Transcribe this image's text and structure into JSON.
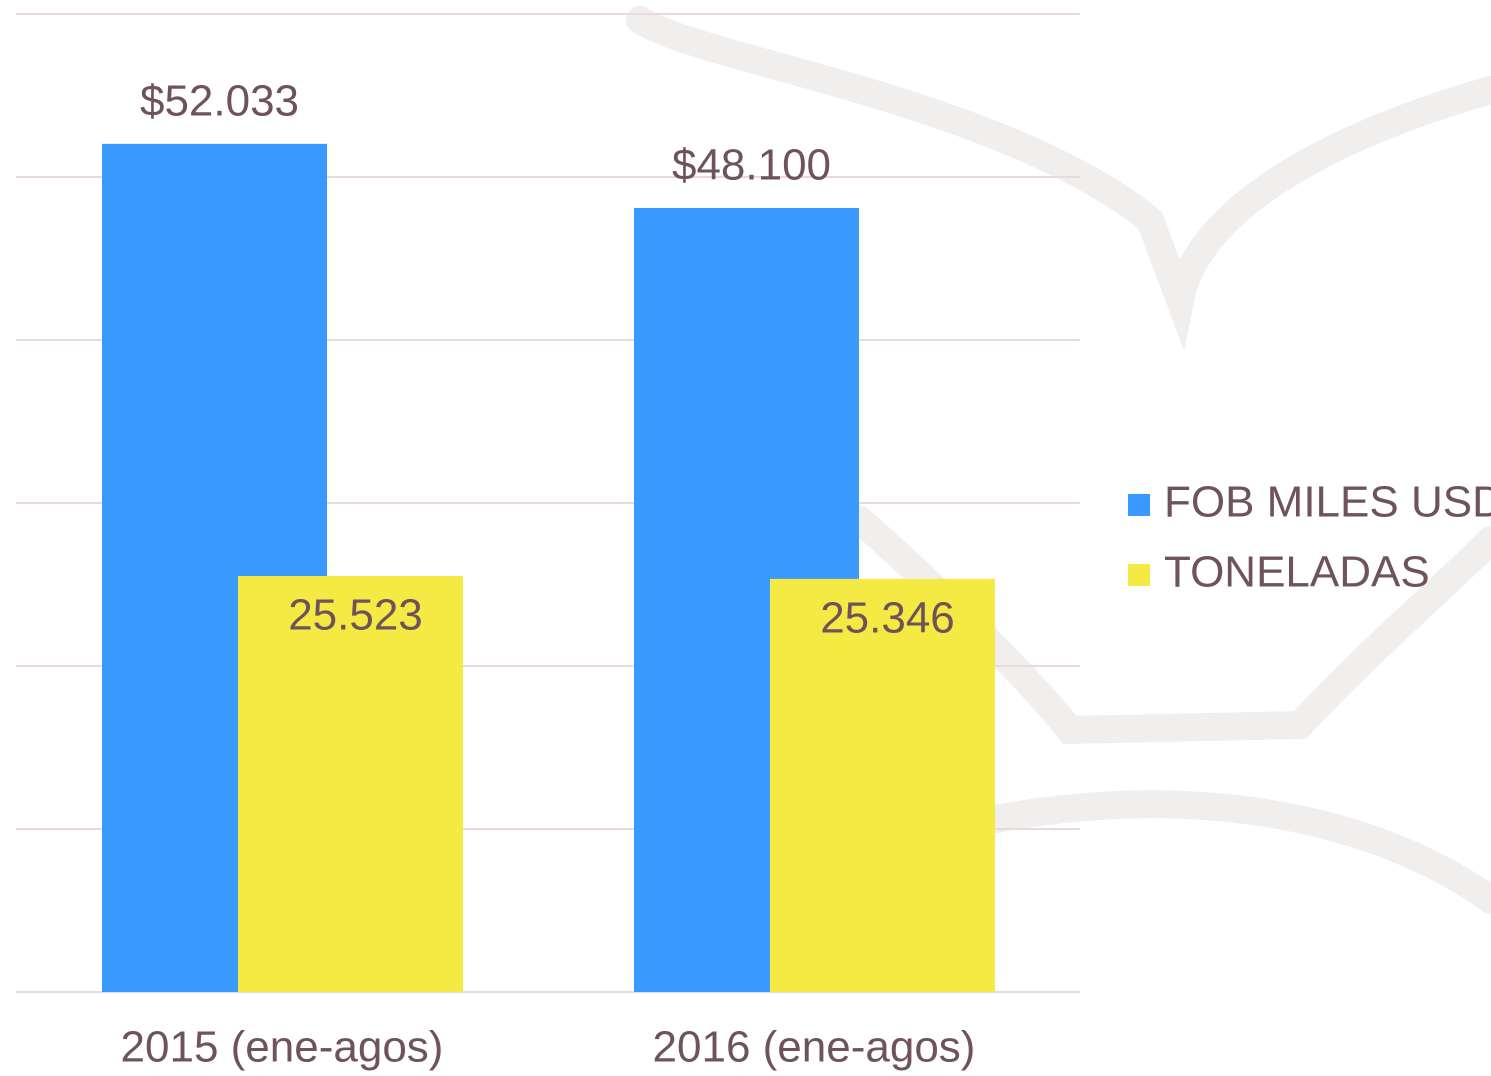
{
  "chart_data": {
    "type": "bar",
    "categories": [
      "2015 (ene-agos)",
      "2016 (ene-agos)"
    ],
    "series": [
      {
        "name": "FOB MILES USD",
        "color": "#3a99ff",
        "values": [
          52033,
          48100
        ],
        "value_labels": [
          "$52.033",
          "$48.100"
        ]
      },
      {
        "name": "TONELADAS",
        "color": "#f5e943",
        "values": [
          25523,
          25346
        ],
        "value_labels": [
          "25.523",
          "25.346"
        ]
      }
    ],
    "ylim": [
      0,
      60000
    ],
    "yticks": [
      0,
      10000,
      20000,
      30000,
      40000,
      50000,
      60000
    ],
    "grid": true,
    "legend": "right"
  }
}
